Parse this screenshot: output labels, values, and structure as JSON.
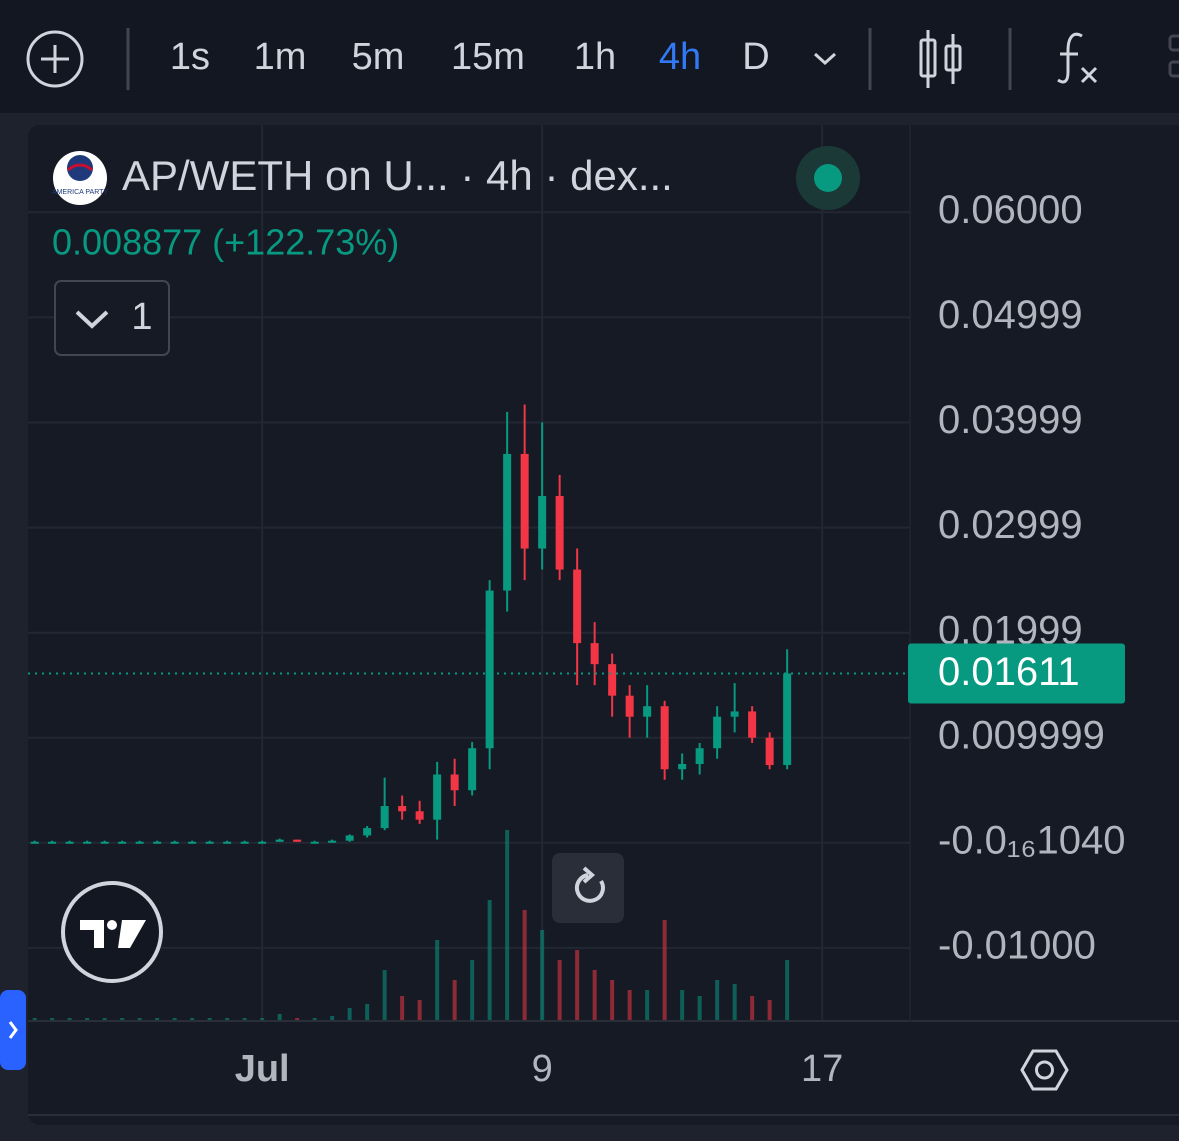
{
  "toolbar": {
    "intervals": [
      "1s",
      "1m",
      "5m",
      "15m",
      "1h",
      "4h",
      "D"
    ],
    "active_interval": 5
  },
  "legend": {
    "logo_text": "AMERICA PARTY",
    "indicator_count": 1
  },
  "chart_data": {
    "type": "candlestick",
    "title": "AP/WETH on U... · 4h · dex...",
    "subtitle": "0.008877 (+122.73%)",
    "x": [
      -5.5,
      -5,
      -4.5,
      -4,
      -3.5,
      -3,
      -2.5,
      -2,
      -1.5,
      -1,
      -0.5,
      0,
      0.5,
      1,
      1.5,
      2,
      2.5,
      3,
      3.5,
      4,
      4.5,
      5,
      5.5,
      6,
      6.5,
      7,
      7.5,
      8,
      8.5,
      9,
      9.5,
      10,
      10.5,
      11,
      11.5,
      12,
      12.5,
      13,
      13.5,
      14,
      14.5,
      15,
      15.5,
      16
    ],
    "open": [
      0.0001,
      0.0001,
      0.0001,
      0.0001,
      0.0001,
      0.0001,
      0.0001,
      0.0001,
      0.0001,
      0.0001,
      0.0001,
      0.0001,
      0.0001,
      0.0001,
      0.0001,
      0.0003,
      0.0001,
      0.0001,
      0.0002,
      0.0007,
      0.0014,
      0.0035,
      0.003,
      0.0022,
      0.0065,
      0.005,
      0.009,
      0.024,
      0.037,
      0.028,
      0.033,
      0.026,
      0.019,
      0.017,
      0.014,
      0.012,
      0.013,
      0.007,
      0.0075,
      0.009,
      0.012,
      0.0125,
      0.01,
      0.0074
    ],
    "high": [
      0.0002,
      0.0002,
      0.0002,
      0.0002,
      0.0002,
      0.0002,
      0.0002,
      0.0002,
      0.0002,
      0.0002,
      0.0002,
      0.0002,
      0.0002,
      0.0002,
      0.0004,
      0.0003,
      0.0002,
      0.0003,
      0.0008,
      0.0016,
      0.0062,
      0.0045,
      0.004,
      0.0077,
      0.008,
      0.0096,
      0.025,
      0.041,
      0.0417,
      0.04,
      0.035,
      0.028,
      0.021,
      0.018,
      0.015,
      0.015,
      0.0135,
      0.0085,
      0.0095,
      0.013,
      0.0152,
      0.013,
      0.0105,
      0.0184
    ],
    "low": [
      0,
      0,
      0,
      0,
      0,
      0,
      0,
      0,
      0,
      0,
      0,
      0,
      0,
      0,
      0.0001,
      0.0001,
      0.0001,
      0,
      0.0001,
      0.0005,
      0.0012,
      0.0022,
      0.0018,
      0.0003,
      0.0035,
      0.0045,
      0.007,
      0.022,
      0.025,
      0.026,
      0.025,
      0.015,
      0.015,
      0.012,
      0.01,
      0.01,
      0.006,
      0.006,
      0.0065,
      0.008,
      0.0105,
      0.0095,
      0.007,
      0.007
    ],
    "close": [
      0.0001,
      0.0001,
      0.0001,
      0.0001,
      0.0001,
      0.0001,
      0.0001,
      0.0001,
      0.0001,
      0.0001,
      0.0001,
      0.0001,
      0.0001,
      0.0001,
      0.0003,
      0.0001,
      0.0001,
      0.0002,
      0.0007,
      0.0014,
      0.0035,
      0.003,
      0.0022,
      0.0065,
      0.005,
      0.009,
      0.024,
      0.037,
      0.028,
      0.033,
      0.026,
      0.019,
      0.017,
      0.014,
      0.012,
      0.013,
      0.007,
      0.0075,
      0.009,
      0.012,
      0.0125,
      0.01,
      0.0074,
      0.01611
    ],
    "volume": [
      1,
      1,
      1,
      1,
      1,
      1,
      1,
      1,
      1,
      1,
      1,
      1,
      1,
      1,
      3,
      1,
      1,
      2,
      6,
      8,
      25,
      12,
      10,
      40,
      20,
      30,
      60,
      95,
      55,
      45,
      30,
      35,
      25,
      20,
      15,
      15,
      50,
      15,
      12,
      20,
      18,
      12,
      10,
      30
    ],
    "vlim": [
      0,
      100
    ],
    "up_color": "#089981",
    "down_color": "#f23645",
    "xlim": [
      -5.69,
      19.51
    ],
    "xticks": [
      {
        "value": 1,
        "label": "Jul"
      },
      9,
      17
    ],
    "ylim": [
      -0.01686,
      0.0683
    ],
    "yticks": [
      {
        "value": 0.06,
        "label": "0.06000"
      },
      0.04999,
      0.03999,
      0.02999,
      0.01999,
      0.009999,
      {
        "value": -1.04e-18,
        "label": "-0.0₁₆1040"
      },
      {
        "value": -0.01,
        "label": "-0.01000"
      }
    ],
    "grid": true,
    "last_price_line": true
  }
}
